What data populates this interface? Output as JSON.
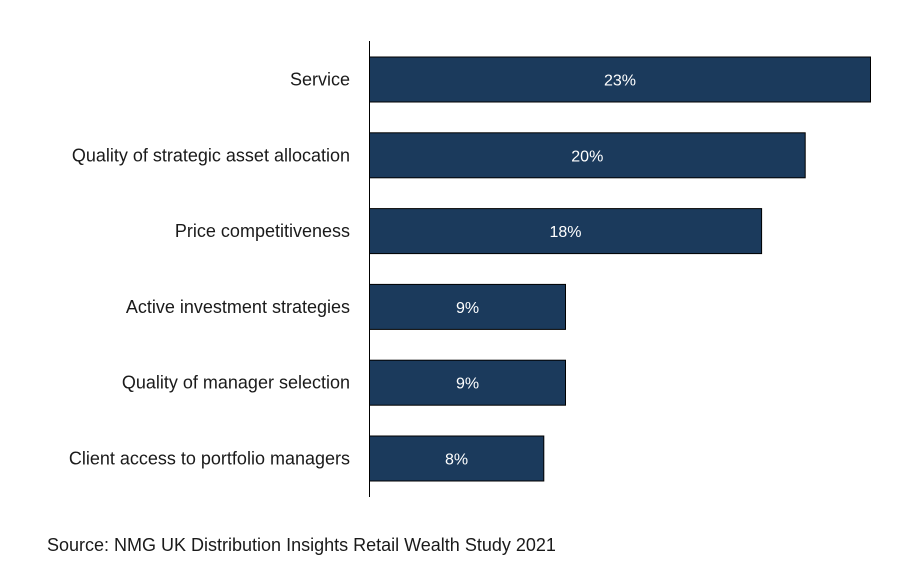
{
  "chart_data": {
    "type": "bar",
    "orientation": "horizontal",
    "categories": [
      "Service",
      "Quality of strategic asset allocation",
      "Price competitiveness",
      "Active investment strategies",
      "Quality of manager selection",
      "Client access to portfolio managers"
    ],
    "values": [
      23,
      20,
      18,
      9,
      9,
      8
    ],
    "value_labels": [
      "23%",
      "20%",
      "18%",
      "9%",
      "9%",
      "8%"
    ],
    "unit": "%",
    "xlim": [
      0,
      23
    ],
    "grid": false,
    "legend": "none",
    "bar_color": "#1b3a5c",
    "bar_border_color": "#000000",
    "value_label_color": "#ffffff"
  },
  "source_text": "Source: NMG UK Distribution Insights Retail Wealth Study 2021"
}
